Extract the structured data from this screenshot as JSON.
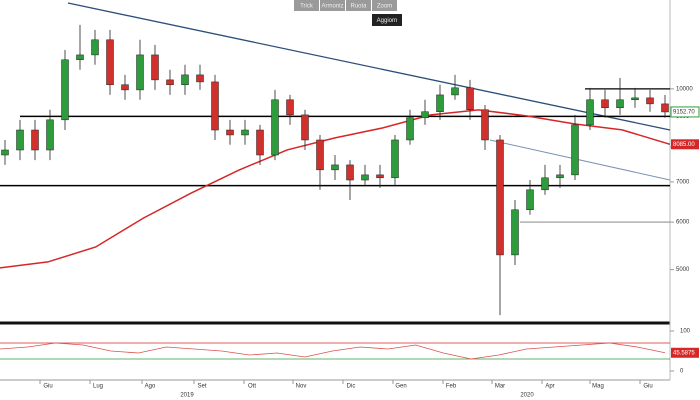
{
  "toolbar": {
    "buttons": [
      "Trick",
      "Armoniz",
      "Ruota",
      "Zoom"
    ],
    "refresh": "Aggiorn"
  },
  "chart_data": [
    {
      "type": "candlestick",
      "series": {
        "open": [
          7760,
          7910,
          8540,
          7910,
          8880,
          11180,
          11390,
          12070,
          10160,
          9960,
          11390,
          10350,
          10160,
          10550,
          10270,
          8540,
          8380,
          8540,
          7760,
          9590,
          9050,
          8220,
          7330,
          7470,
          7050,
          7190,
          7110,
          8220,
          8950,
          9160,
          9770,
          10040,
          9230,
          8220,
          5290,
          6290,
          6790,
          7110,
          7190,
          8710,
          9590,
          9300,
          9590,
          9660,
          9440
        ],
        "high": [
          8220,
          8880,
          8880,
          9230,
          11610,
          12780,
          12540,
          12540,
          10550,
          12070,
          11840,
          10760,
          10970,
          10970,
          10550,
          8880,
          8880,
          8710,
          9960,
          9770,
          9230,
          8380,
          7760,
          7610,
          7470,
          7470,
          8380,
          9230,
          9590,
          10160,
          10550,
          10350,
          9400,
          8380,
          6530,
          7050,
          7470,
          7470,
          9050,
          10040,
          9960,
          10430,
          10040,
          9960,
          9770
        ],
        "low": [
          7470,
          7610,
          7610,
          7610,
          8540,
          10760,
          10970,
          9770,
          9590,
          9590,
          9960,
          9770,
          9770,
          9960,
          8220,
          8070,
          8070,
          7470,
          7610,
          8710,
          7910,
          6790,
          7050,
          6530,
          6920,
          6840,
          6920,
          8070,
          8710,
          8880,
          9590,
          8880,
          7910,
          4200,
          5090,
          6170,
          6660,
          6840,
          7050,
          8540,
          8950,
          9050,
          9300,
          9160,
          8950
        ],
        "close": [
          7910,
          8540,
          7910,
          8880,
          11180,
          11390,
          12070,
          10160,
          9960,
          11390,
          10350,
          10160,
          10550,
          10270,
          8540,
          8380,
          8540,
          7760,
          9590,
          9050,
          8220,
          7330,
          7470,
          7050,
          7190,
          7110,
          8220,
          8950,
          9160,
          9770,
          10040,
          9230,
          8220,
          5290,
          6290,
          6790,
          7110,
          7190,
          8710,
          9590,
          9300,
          9590,
          9660,
          9440,
          9152.7
        ]
      },
      "close_label": "9152.70",
      "ma": {
        "color": "#d62728",
        "values": [
          5034,
          5150,
          5453,
          6095,
          6708,
          7328,
          7912,
          8287,
          8610,
          9050,
          9226,
          9016,
          8744,
          8544,
          8085
        ]
      },
      "ma_label": "8085.00",
      "levels": [
        9000,
        6900,
        10000,
        6000
      ],
      "ylim": [
        4090,
        14060
      ],
      "log": true,
      "yticks": [
        5000,
        6000,
        7000,
        8000,
        9000,
        10000
      ],
      "xlabels": [
        "Giu",
        "Lug",
        "Ago",
        "Set",
        "Ott",
        "Nov",
        "Dic",
        "Gen",
        "Feb",
        "Mar",
        "Apr",
        "Mag",
        "Giu"
      ],
      "years": [
        "2019",
        "2020"
      ]
    },
    {
      "type": "line",
      "color": "#d9534f",
      "values": [
        55,
        60,
        70,
        65,
        50,
        45,
        60,
        55,
        50,
        40,
        45,
        35,
        50,
        60,
        55,
        65,
        45,
        30,
        40,
        55,
        60,
        65,
        70,
        60,
        45.5875
      ],
      "ylim": [
        0,
        100
      ],
      "yticks": [
        0,
        100
      ],
      "bands": [
        70,
        30
      ]
    }
  ]
}
